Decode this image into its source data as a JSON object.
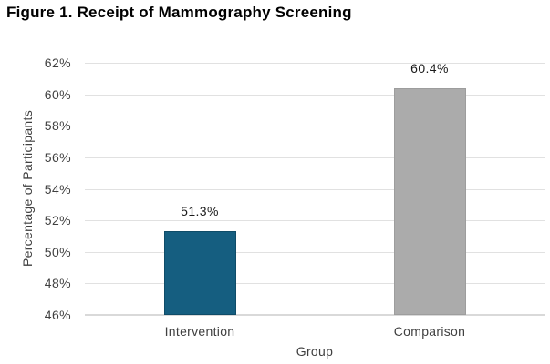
{
  "chart_data": {
    "type": "bar",
    "title": "Figure 1. Receipt of Mammography Screening",
    "categories": [
      "Intervention",
      "Comparison"
    ],
    "values": [
      51.3,
      60.4
    ],
    "value_labels": [
      "51.3%",
      "60.4%"
    ],
    "bar_colors": [
      "#155E80",
      "#ABABAB"
    ],
    "bar_border_colors": [
      "#0F4C68",
      "#9D9D9D"
    ],
    "xlabel": "Group",
    "ylabel": "Percentage of Participants",
    "ylim": [
      46,
      62
    ],
    "ytick_step": 2,
    "ytick_labels": [
      "46%",
      "48%",
      "50%",
      "52%",
      "54%",
      "56%",
      "58%",
      "60%",
      "62%"
    ],
    "grid": true,
    "legend": false,
    "gridline_color": "#e1e1e1",
    "axis_line_color": "#d9d9d9",
    "background_color": "#ffffff"
  }
}
